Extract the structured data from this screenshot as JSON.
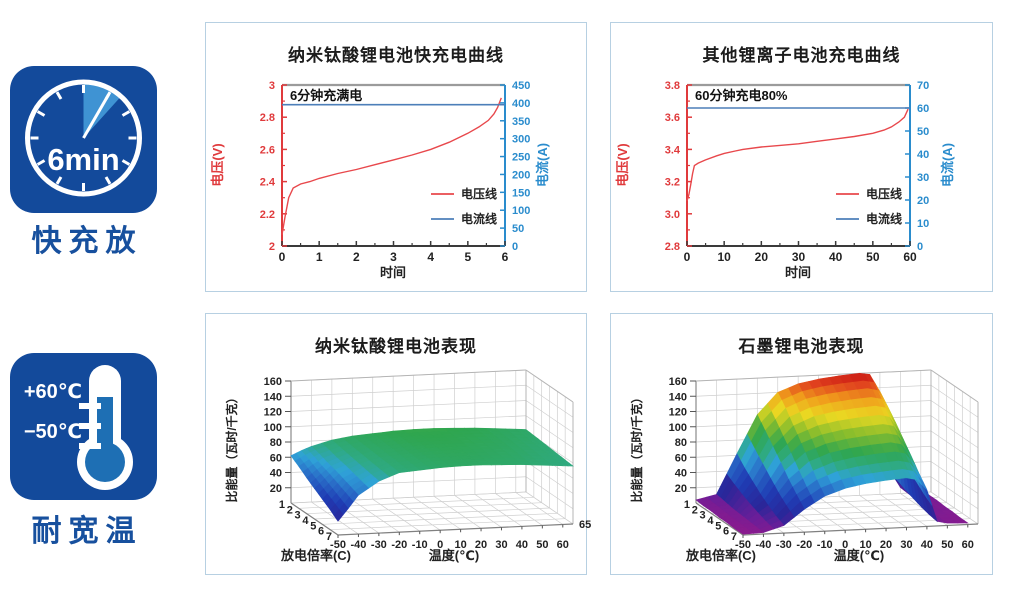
{
  "colors": {
    "brand_blue": "#134a9b",
    "accent_light_blue": "#3f93d3",
    "thermometer_fill": "#1e6fb4",
    "panel_border": "#b7d0e2",
    "axis_red": "#e03a3c",
    "axis_blue": "#2a8ccd",
    "current_line": "#4d7fb9",
    "top_spine": "#9b9b9b",
    "label_blue": "#17509e"
  },
  "features": [
    {
      "icon": "clock-6min-icon",
      "icon_text": "6min",
      "label": "快充放"
    },
    {
      "icon": "thermometer-icon",
      "temp_high": "+60℃",
      "temp_low": "−50℃",
      "label": "耐宽温"
    }
  ],
  "chart_data": [
    {
      "type": "line",
      "title": "纳米钛酸锂电池快充电曲线",
      "annotation": "6分钟充满电",
      "xlabel": "时间",
      "xlim": [
        0,
        6
      ],
      "x_ticks": [
        0,
        1,
        2,
        3,
        4,
        5,
        6
      ],
      "x_minor": 0.5,
      "y_left": {
        "label": "电压(V)",
        "lim": [
          2,
          3
        ],
        "ticks": [
          "2",
          "2.2",
          "2.4",
          "2.6",
          "2.8",
          "3"
        ],
        "color": "#e03a3c"
      },
      "y_right": {
        "label": "电流(A)",
        "lim": [
          0,
          450
        ],
        "ticks": [
          "0",
          "50",
          "100",
          "150",
          "200",
          "250",
          "300",
          "350",
          "400",
          "450"
        ],
        "color": "#2a8ccd"
      },
      "series": [
        {
          "name": "电压线",
          "axis": "left",
          "color": "#e8484c",
          "points": [
            [
              0,
              2.07
            ],
            [
              0.08,
              2.18
            ],
            [
              0.18,
              2.3
            ],
            [
              0.3,
              2.36
            ],
            [
              0.5,
              2.385
            ],
            [
              0.75,
              2.4
            ],
            [
              1,
              2.42
            ],
            [
              1.5,
              2.45
            ],
            [
              2,
              2.475
            ],
            [
              2.5,
              2.505
            ],
            [
              3,
              2.535
            ],
            [
              3.5,
              2.565
            ],
            [
              4,
              2.6
            ],
            [
              4.5,
              2.645
            ],
            [
              5,
              2.7
            ],
            [
              5.3,
              2.74
            ],
            [
              5.55,
              2.78
            ],
            [
              5.7,
              2.82
            ],
            [
              5.8,
              2.86
            ],
            [
              5.9,
              2.92
            ]
          ]
        },
        {
          "name": "电流线",
          "axis": "right",
          "color": "#4d7fb9",
          "constant": 395
        }
      ]
    },
    {
      "type": "line",
      "title": "其他锂离子电池充电曲线",
      "annotation": "60分钟充电80%",
      "xlabel": "时间",
      "xlim": [
        0,
        60
      ],
      "x_ticks": [
        0,
        10,
        20,
        30,
        40,
        50,
        60
      ],
      "x_minor": 5,
      "y_left": {
        "label": "电压(V)",
        "lim": [
          2.8,
          3.8
        ],
        "ticks": [
          "2.8",
          "3.0",
          "3.2",
          "3.4",
          "3.6",
          "3.8"
        ],
        "color": "#e03a3c"
      },
      "y_right": {
        "label": "电流(A)",
        "lim": [
          0,
          70
        ],
        "ticks": [
          "0",
          "10",
          "20",
          "30",
          "40",
          "50",
          "60",
          "70"
        ],
        "color": "#2a8ccd"
      },
      "series": [
        {
          "name": "电压线",
          "axis": "left",
          "color": "#e8484c",
          "points": [
            [
              0,
              3.08
            ],
            [
              0.5,
              3.12
            ],
            [
              1,
              3.18
            ],
            [
              1.5,
              3.25
            ],
            [
              2,
              3.3
            ],
            [
              3,
              3.315
            ],
            [
              5,
              3.335
            ],
            [
              8,
              3.36
            ],
            [
              10,
              3.375
            ],
            [
              13,
              3.39
            ],
            [
              15,
              3.4
            ],
            [
              20,
              3.415
            ],
            [
              25,
              3.425
            ],
            [
              30,
              3.435
            ],
            [
              35,
              3.45
            ],
            [
              40,
              3.465
            ],
            [
              45,
              3.48
            ],
            [
              50,
              3.5
            ],
            [
              53,
              3.52
            ],
            [
              55,
              3.54
            ],
            [
              57,
              3.57
            ],
            [
              58.5,
              3.6
            ],
            [
              59.5,
              3.65
            ]
          ]
        },
        {
          "name": "电流线",
          "axis": "right",
          "color": "#4d7fb9",
          "constant": 60
        }
      ]
    },
    {
      "type": "surface",
      "title": "纳米钛酸锂电池表现",
      "zlabel": "比能量（瓦时/千克）",
      "xlabel": "温度(℃)",
      "ylabel": "放电倍率(C)",
      "zlim": [
        0,
        160
      ],
      "z_ticks": [
        20,
        40,
        60,
        80,
        100,
        120,
        140,
        160
      ],
      "x_ticks": [
        -50,
        -40,
        -30,
        -20,
        -10,
        0,
        10,
        20,
        30,
        40,
        50,
        60
      ],
      "x_end_label": "65",
      "y_ticks": [
        1,
        2,
        3,
        4,
        5,
        6,
        7
      ],
      "temps": [
        -50,
        -45,
        -40,
        -30,
        -20,
        -10,
        0,
        10,
        20,
        30,
        40,
        50,
        60,
        65
      ],
      "rates": [
        1,
        2,
        3,
        4,
        5,
        6,
        7
      ],
      "z": [
        [
          62,
          68,
          73,
          80,
          84,
          86,
          88,
          89,
          89,
          88,
          87,
          85,
          83,
          82
        ],
        [
          55,
          63,
          70,
          78,
          83,
          85,
          87,
          88,
          88,
          87,
          86,
          84,
          82,
          81
        ],
        [
          47,
          57,
          66,
          76,
          82,
          84,
          86,
          87,
          87,
          86,
          85,
          83,
          81,
          80
        ],
        [
          40,
          52,
          63,
          74,
          81,
          83,
          85,
          86,
          86,
          85,
          84,
          82,
          80,
          79
        ],
        [
          33,
          46,
          59,
          72,
          80,
          82,
          84,
          85,
          85,
          84,
          83,
          81,
          79,
          78
        ],
        [
          26,
          40,
          55,
          70,
          79,
          81,
          83,
          84,
          84,
          83,
          82,
          80,
          78,
          77
        ],
        [
          18,
          34,
          51,
          68,
          78,
          80,
          82,
          83,
          83,
          82,
          81,
          79,
          77,
          76
        ]
      ],
      "colormap": [
        [
          0,
          "#8e1a8c"
        ],
        [
          0.05,
          "#6a1e99"
        ],
        [
          0.12,
          "#2a2699"
        ],
        [
          0.22,
          "#1f3cb4"
        ],
        [
          0.32,
          "#2a6fc8"
        ],
        [
          0.4,
          "#2fa3d8"
        ],
        [
          0.47,
          "#2faa85"
        ],
        [
          0.55,
          "#2fa64f"
        ],
        [
          0.66,
          "#8cbe2c"
        ],
        [
          0.76,
          "#ead922"
        ],
        [
          0.86,
          "#f09c1c"
        ],
        [
          0.94,
          "#e0401e"
        ],
        [
          1,
          "#c61212"
        ]
      ]
    },
    {
      "type": "surface",
      "title": "石墨锂电池表现",
      "zlabel": "比能量（瓦时/千克）",
      "xlabel": "温度(℃)",
      "ylabel": "放电倍率(C)",
      "zlim": [
        0,
        160
      ],
      "z_ticks": [
        20,
        40,
        60,
        80,
        100,
        120,
        140,
        160
      ],
      "x_ticks": [
        -50,
        -40,
        -30,
        -20,
        -10,
        0,
        10,
        20,
        30,
        40,
        50,
        60
      ],
      "x_end_label": "",
      "y_ticks": [
        1,
        2,
        3,
        4,
        5,
        6,
        7
      ],
      "temps": [
        -50,
        -40,
        -30,
        -20,
        -10,
        0,
        10,
        20,
        30,
        35,
        40,
        45,
        50,
        60
      ],
      "rates": [
        1,
        2,
        3,
        4,
        5,
        6,
        7
      ],
      "z": [
        [
          4,
          10,
          62,
          112,
          140,
          150,
          155,
          158,
          160,
          158,
          135,
          30,
          8,
          5
        ],
        [
          3,
          8,
          50,
          98,
          126,
          137,
          142,
          145,
          147,
          144,
          122,
          24,
          7,
          4
        ],
        [
          3,
          6,
          40,
          84,
          110,
          121,
          126,
          129,
          131,
          128,
          108,
          19,
          6,
          4
        ],
        [
          2,
          5,
          30,
          70,
          94,
          104,
          109,
          112,
          114,
          111,
          93,
          15,
          5,
          3
        ],
        [
          2,
          4,
          22,
          55,
          77,
          87,
          92,
          95,
          97,
          94,
          78,
          11,
          4,
          3
        ],
        [
          1,
          3,
          15,
          42,
          60,
          70,
          75,
          78,
          80,
          77,
          62,
          8,
          3,
          2
        ],
        [
          1,
          2,
          10,
          30,
          46,
          55,
          60,
          63,
          65,
          62,
          48,
          6,
          3,
          2
        ]
      ],
      "colormap": [
        [
          0,
          "#8e1a8c"
        ],
        [
          0.05,
          "#6a1e99"
        ],
        [
          0.12,
          "#2a2699"
        ],
        [
          0.22,
          "#1f3cb4"
        ],
        [
          0.32,
          "#2a6fc8"
        ],
        [
          0.4,
          "#2fa3d8"
        ],
        [
          0.47,
          "#2faa85"
        ],
        [
          0.55,
          "#2fa64f"
        ],
        [
          0.66,
          "#8cbe2c"
        ],
        [
          0.76,
          "#ead922"
        ],
        [
          0.86,
          "#f09c1c"
        ],
        [
          0.94,
          "#e0401e"
        ],
        [
          1,
          "#c61212"
        ]
      ]
    }
  ]
}
